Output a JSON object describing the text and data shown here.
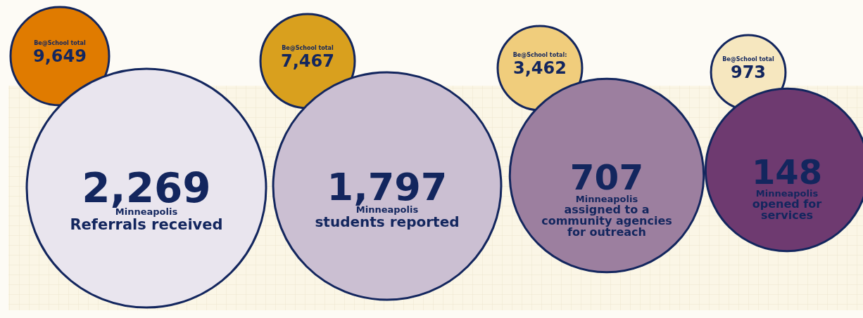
{
  "chart_data": {
    "type": "other",
    "categories": [
      "Referrals received",
      "students reported",
      "assigned to a community agencies for outreach",
      "opened for services"
    ],
    "series": [
      {
        "name": "Minneapolis",
        "values": [
          2269,
          1797,
          707,
          148
        ],
        "value_labels": [
          "2,269",
          "1,797",
          "707",
          "148"
        ],
        "colors": [
          "#e9e5ee",
          "#cbbfd2",
          "#9c7f9f",
          "#6e3a70"
        ]
      },
      {
        "values": [
          9649,
          7467,
          3462,
          973
        ],
        "value_labels": [
          "9,649",
          "7,467",
          "3,462",
          "973"
        ],
        "colors": [
          "#e07b00",
          "#d9a01e",
          "#f0cd7c",
          "#f6e7bf"
        ]
      }
    ],
    "annotations": [
      "Be@School total",
      "Be@School total",
      "Be@School total:",
      "Be@School total"
    ]
  }
}
